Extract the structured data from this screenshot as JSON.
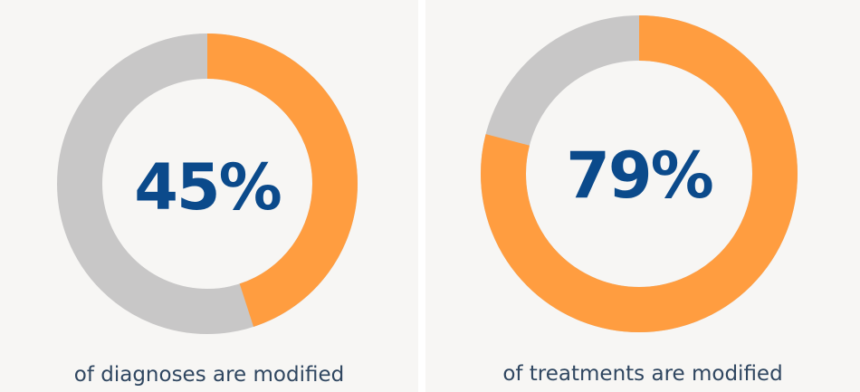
{
  "chart_data": [
    {
      "type": "pie",
      "percent": 45,
      "center_label": "45%",
      "caption": "of diagnoses are modified",
      "colors": {
        "value": "#ff9d40",
        "remainder": "#c8c7c7"
      }
    },
    {
      "type": "pie",
      "percent": 79,
      "center_label": "79%",
      "caption": "of treatments are modified",
      "colors": {
        "value": "#ff9d40",
        "remainder": "#c8c7c7"
      }
    }
  ]
}
